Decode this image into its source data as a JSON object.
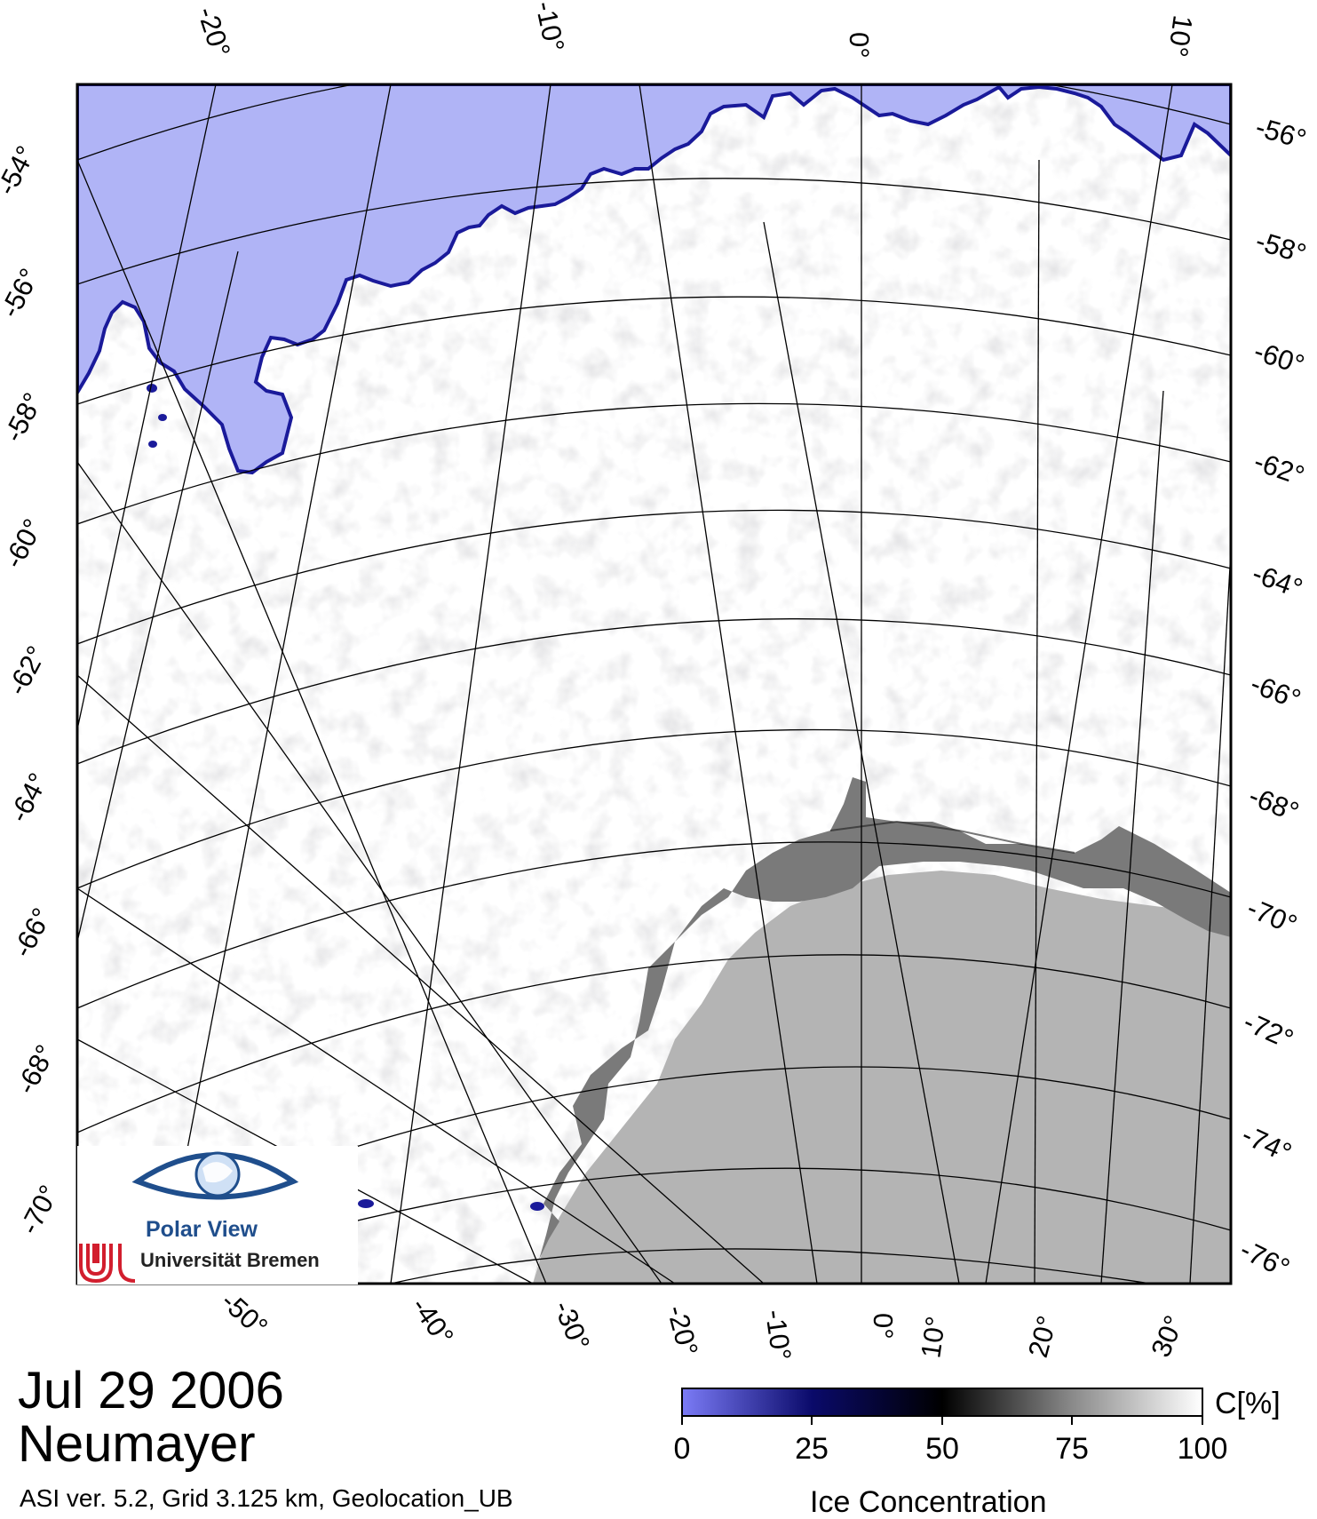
{
  "map": {
    "top_lon_labels": [
      "-20°",
      "-10°",
      "0°",
      "10°"
    ],
    "bottom_lon_labels": [
      "-50°",
      "-40°",
      "-30°",
      "-20°",
      "-10°",
      "0°",
      "10°",
      "20°",
      "30°"
    ],
    "left_lat_labels": [
      "-54°",
      "-56°",
      "-58°",
      "-60°",
      "-62°",
      "-64°",
      "-66°",
      "-68°",
      "-70°"
    ],
    "right_lat_labels": [
      "-56°",
      "-58°",
      "-60°",
      "-62°",
      "-64°",
      "-66°",
      "-68°",
      "-70°",
      "-72°",
      "-74°",
      "-76°"
    ],
    "colors": {
      "open_water": "#b0b4f6",
      "ice_full": "#ffffff",
      "land": "#b4b4b4",
      "ice_shelf": "#7a7a7a",
      "grid": "#000000"
    }
  },
  "logo": {
    "name": "Polar View",
    "institution": "Universität Bremen"
  },
  "info": {
    "date": "Jul 29 2006",
    "station": "Neumayer",
    "footnote": "ASI ver. 5.2,  Grid 3.125 km, Geolocation_UB"
  },
  "colorbar": {
    "title": "Ice Concentration",
    "unit": "C[%]",
    "ticks": [
      "0",
      "25",
      "50",
      "75",
      "100"
    ],
    "gradient": [
      "#7b7bf6",
      "#0a0a6a",
      "#000000",
      "#8a8a8a",
      "#ffffff"
    ]
  }
}
